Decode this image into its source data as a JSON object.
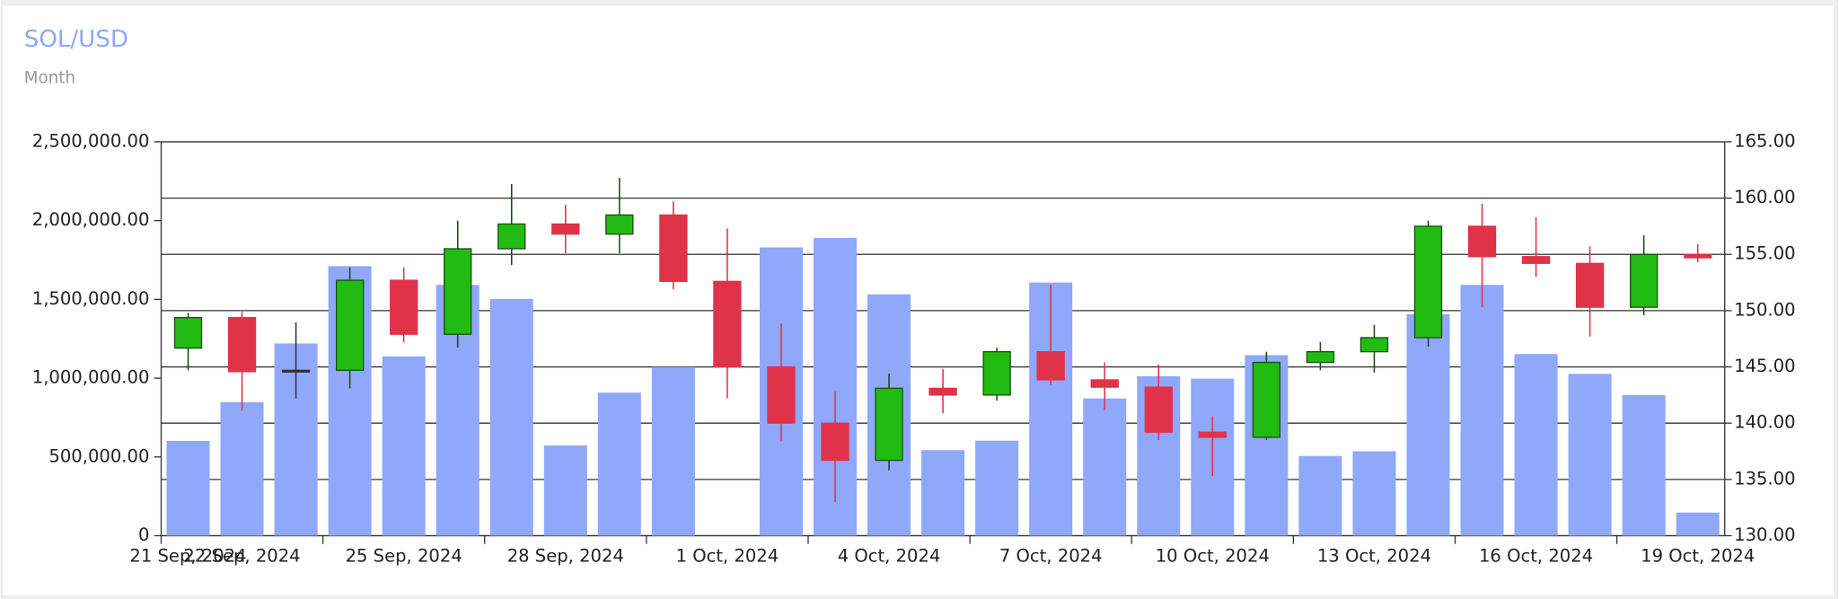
{
  "chart_data": {
    "type": "candlestick",
    "title": "SOL/USD",
    "subtitle": "Month",
    "categories": [
      "21 Sep, 2024",
      "22 Sep, 2024",
      null,
      null,
      "25 Sep, 2024",
      null,
      null,
      "28 Sep, 2024",
      null,
      null,
      "1 Oct, 2024",
      null,
      null,
      "4 Oct, 2024",
      null,
      null,
      "7 Oct, 2024",
      null,
      null,
      "10 Oct, 2024",
      null,
      null,
      "13 Oct, 2024",
      null,
      null,
      "16 Oct, 2024",
      null,
      null,
      "19 Oct, 2024"
    ],
    "volume": [
      602000,
      848000,
      1220000,
      1711000,
      1138000,
      1592000,
      1503000,
      573000,
      908000,
      1071000,
      null,
      1830000,
      1890000,
      1532000,
      543000,
      603000,
      1607000,
      871000,
      1012000,
      997000,
      1146000,
      506000,
      536000,
      1406000,
      1592000,
      1153000,
      1027000,
      893000,
      147000
    ],
    "open": [
      146.67,
      149.38,
      144.7,
      144.7,
      152.7,
      147.9,
      155.5,
      157.7,
      156.8,
      158.5,
      152.6,
      145.0,
      140.0,
      136.7,
      143.1,
      142.5,
      146.35,
      143.85,
      143.2,
      139.2,
      138.75,
      145.4,
      146.35,
      147.6,
      157.5,
      154.8,
      154.2,
      150.3,
      155.0
    ],
    "high": [
      149.79,
      149.9,
      148.96,
      153.85,
      153.85,
      158.0,
      161.25,
      159.4,
      161.8,
      159.7,
      157.3,
      148.85,
      142.8,
      144.4,
      144.8,
      146.7,
      152.3,
      145.4,
      145.2,
      140.6,
      146.35,
      147.2,
      148.75,
      158.0,
      159.5,
      158.3,
      155.7,
      156.7,
      155.9
    ],
    "low": [
      144.69,
      141.1,
      142.2,
      143.1,
      147.2,
      146.7,
      154.06,
      155.1,
      155.1,
      151.9,
      142.2,
      138.4,
      133.0,
      135.8,
      140.9,
      142.0,
      143.4,
      141.15,
      138.5,
      135.3,
      138.5,
      144.7,
      144.5,
      146.8,
      150.3,
      153.0,
      147.7,
      149.6,
      154.3
    ],
    "close": [
      149.38,
      144.58,
      144.7,
      152.7,
      147.9,
      155.5,
      157.7,
      156.8,
      158.5,
      152.6,
      145.0,
      140.0,
      136.7,
      143.1,
      142.5,
      146.35,
      143.85,
      143.2,
      139.2,
      138.75,
      145.4,
      146.35,
      147.6,
      157.5,
      154.8,
      154.2,
      150.3,
      155.0,
      154.7
    ],
    "volume_color": "#8fa8fa",
    "up_color": "#22bb11",
    "down_color": "#e0334a",
    "flat_color": "#333333",
    "ylim": [
      0,
      2500000
    ],
    "yticks": [
      0,
      {
        "value": 500000,
        "label": "500,000.00"
      },
      {
        "value": 1000000,
        "label": "1,000,000.00"
      },
      {
        "value": 1500000,
        "label": "1,500,000.00"
      },
      {
        "value": 2000000,
        "label": "2,000,000.00"
      },
      {
        "value": 2500000,
        "label": "2,500,000.00"
      }
    ],
    "y2lim": [
      130,
      165
    ],
    "y2ticks": [
      {
        "value": 130,
        "label": "130.00"
      },
      {
        "value": 135,
        "label": "135.00"
      },
      {
        "value": 140,
        "label": "140.00"
      },
      {
        "value": 145,
        "label": "145.00"
      },
      {
        "value": 150,
        "label": "150.00"
      },
      {
        "value": 155,
        "label": "155.00"
      },
      {
        "value": 160,
        "label": "160.00"
      },
      {
        "value": 165,
        "label": "165.00"
      }
    ],
    "grid": "y2"
  }
}
